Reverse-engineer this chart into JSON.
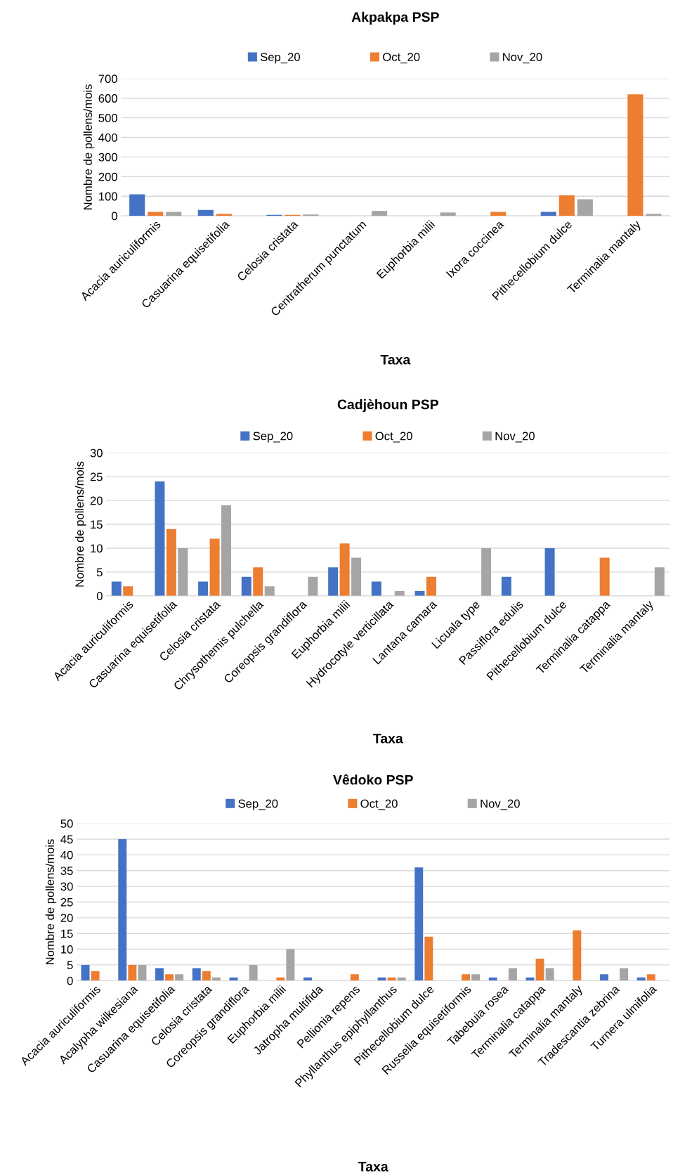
{
  "chart_data": [
    {
      "type": "bar",
      "title": "Akpakpa PSP",
      "xlabel": "Taxa",
      "ylabel": "Nombre de pollens/mois",
      "categories": [
        "Acacia auriculiformis",
        "Casuarina equisetifolia",
        "Celosia cristata",
        "Centratherum punctatum",
        "Euphorbia milii",
        "Ixora coccinea",
        "Pithecellobium dulce",
        "Terminalia mantaly"
      ],
      "series": [
        {
          "name": "Sep_20",
          "color": "#4472c4",
          "values": [
            110,
            30,
            5,
            null,
            null,
            null,
            20,
            null
          ]
        },
        {
          "name": "Oct_20",
          "color": "#ed7d31",
          "values": [
            20,
            10,
            5,
            null,
            null,
            20,
            105,
            620
          ]
        },
        {
          "name": "Nov_20",
          "color": "#a5a5a5",
          "values": [
            20,
            null,
            7,
            25,
            17,
            null,
            85,
            10
          ]
        }
      ],
      "ylim": [
        0,
        700
      ],
      "yticks": [
        0,
        100,
        200,
        300,
        400,
        500,
        600,
        700
      ],
      "grid": "y",
      "legend": "top"
    },
    {
      "type": "bar",
      "title": "Cadjèhoun PSP",
      "xlabel": "Taxa",
      "ylabel": "Nombre de pollens/mois",
      "categories": [
        "Acacia auriculiformis",
        "Casuarina equisetifolia",
        "Celosia cristata",
        "Chrysothemis pulchella",
        "Coreopsis grandiflora",
        "Euphorbia milii",
        "Hydrocotyle verticillata",
        "Lantana camara",
        "Licuala type",
        "Passiflora edulis",
        "Pithecellobium dulce",
        "Terminalia catappa",
        "Terminalia mantaly"
      ],
      "series": [
        {
          "name": "Sep_20",
          "color": "#4472c4",
          "values": [
            3,
            24,
            3,
            4,
            null,
            6,
            3,
            1,
            null,
            4,
            10,
            null,
            null
          ]
        },
        {
          "name": "Oct_20",
          "color": "#ed7d31",
          "values": [
            2,
            14,
            12,
            6,
            null,
            11,
            null,
            4,
            null,
            null,
            null,
            8,
            null
          ]
        },
        {
          "name": "Nov_20",
          "color": "#a5a5a5",
          "values": [
            null,
            10,
            19,
            2,
            4,
            8,
            1,
            null,
            10,
            null,
            null,
            null,
            6
          ]
        }
      ],
      "ylim": [
        0,
        30
      ],
      "yticks": [
        0,
        5,
        10,
        15,
        20,
        25,
        30
      ],
      "grid": "y",
      "legend": "top"
    },
    {
      "type": "bar",
      "title": "Vêdoko PSP",
      "xlabel": "Taxa",
      "ylabel": "Nombre de pollens/mois",
      "categories": [
        "Acacia auriculiformis",
        "Acalypha wilkesiana",
        "Casuarina equisetifolia",
        "Celosia cristata",
        "Coreopsis grandiflora",
        "Euphorbia milii",
        "Jatropha multifida",
        "Pellionia repens",
        "Phyllanthus epiphyllanthus",
        "Pithecellobium dulce",
        "Russelia equisetiformis",
        "Tabebuia rosea",
        "Terminalia catappa",
        "Terminalia mantaly",
        "Tradescantia zebrina",
        "Turnera ulmifolia"
      ],
      "series": [
        {
          "name": "Sep_20",
          "color": "#4472c4",
          "values": [
            5,
            45,
            4,
            4,
            1,
            null,
            1,
            null,
            1,
            36,
            null,
            1,
            1,
            null,
            2,
            1
          ]
        },
        {
          "name": "Oct_20",
          "color": "#ed7d31",
          "values": [
            3,
            5,
            2,
            3,
            null,
            1,
            null,
            2,
            1,
            14,
            2,
            null,
            7,
            16,
            null,
            2
          ]
        },
        {
          "name": "Nov_20",
          "color": "#a5a5a5",
          "values": [
            null,
            5,
            2,
            1,
            5,
            10,
            null,
            null,
            1,
            null,
            2,
            4,
            4,
            null,
            4,
            null
          ]
        }
      ],
      "ylim": [
        0,
        50
      ],
      "yticks": [
        0,
        5,
        10,
        15,
        20,
        25,
        30,
        35,
        40,
        45,
        50
      ],
      "grid": "y",
      "legend": "top"
    }
  ]
}
